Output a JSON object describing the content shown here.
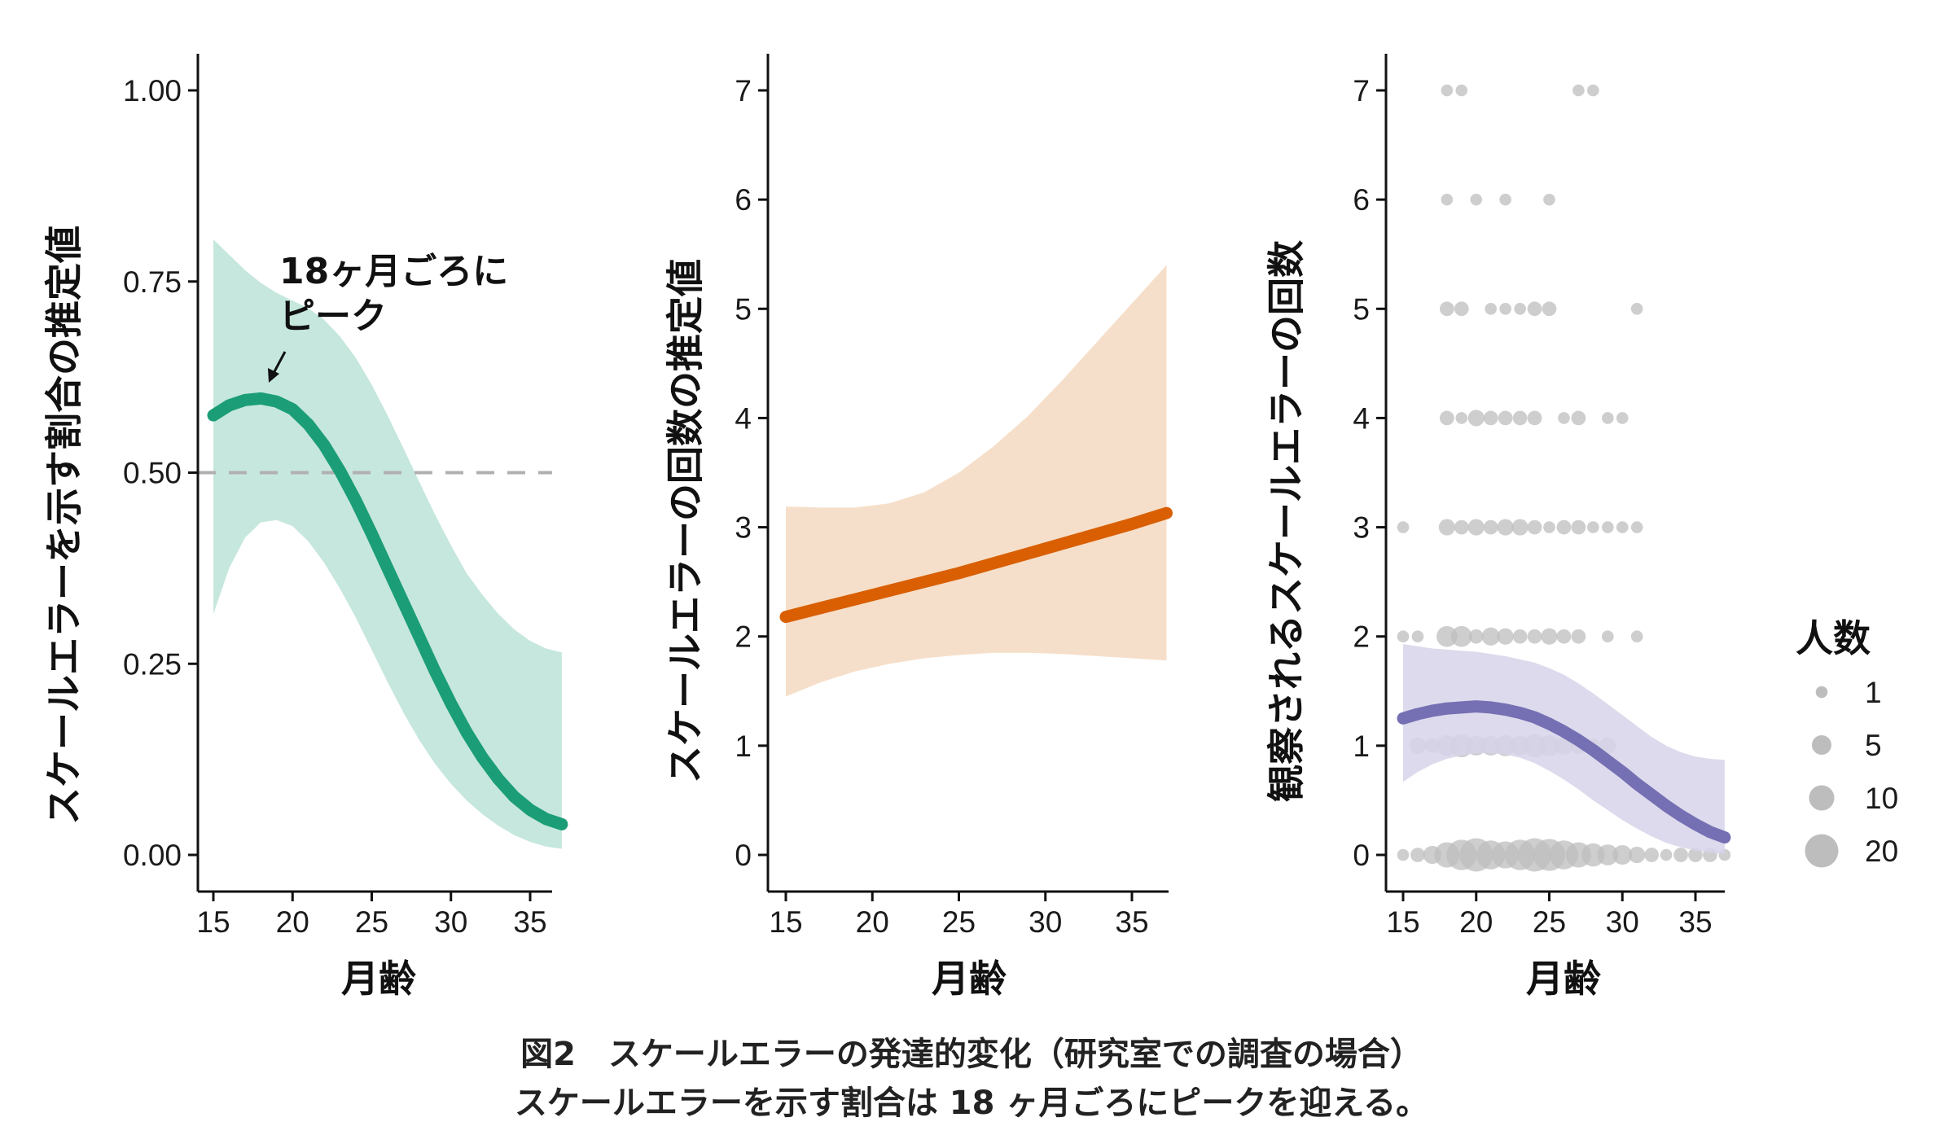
{
  "caption": {
    "line1": "図2　スケールエラーの発達的変化（研究室での調査の場合）",
    "line2": "スケールエラーを示す割合は 18 ヶ月ごろにピークを迎える。"
  },
  "chart_data": [
    {
      "type": "line",
      "xlabel": "月齢",
      "ylabel": "スケールエラーを示す割合の推定値",
      "xlim": [
        15,
        37
      ],
      "ylim": [
        0,
        1
      ],
      "xticks": [
        15,
        20,
        25,
        30,
        35
      ],
      "yticks": [
        "0.00",
        "0.25",
        "0.50",
        "0.75",
        "1.00"
      ],
      "reference_line": {
        "y": 0.5,
        "style": "dashed"
      },
      "color": "#1b9e77",
      "band_color": "#1b9e77",
      "series": [
        {
          "x": [
            15,
            16,
            17,
            18,
            19,
            20,
            21,
            22,
            23,
            24,
            25,
            26,
            27,
            28,
            29,
            30,
            31,
            32,
            33,
            34,
            35,
            36,
            37
          ],
          "y": [
            0.575,
            0.588,
            0.595,
            0.597,
            0.593,
            0.583,
            0.563,
            0.536,
            0.502,
            0.463,
            0.42,
            0.375,
            0.33,
            0.285,
            0.24,
            0.198,
            0.16,
            0.127,
            0.099,
            0.076,
            0.059,
            0.047,
            0.04
          ],
          "lower": [
            0.315,
            0.375,
            0.415,
            0.435,
            0.438,
            0.43,
            0.41,
            0.382,
            0.348,
            0.31,
            0.268,
            0.226,
            0.186,
            0.15,
            0.119,
            0.093,
            0.071,
            0.053,
            0.038,
            0.026,
            0.017,
            0.011,
            0.008
          ],
          "upper": [
            0.805,
            0.785,
            0.765,
            0.748,
            0.735,
            0.725,
            0.715,
            0.7,
            0.678,
            0.65,
            0.615,
            0.575,
            0.532,
            0.488,
            0.445,
            0.405,
            0.368,
            0.34,
            0.315,
            0.295,
            0.28,
            0.27,
            0.265
          ]
        }
      ],
      "annotation": {
        "lines": [
          "18ヶ月ごろに",
          "ピーク"
        ],
        "points_to": [
          18,
          0.597
        ]
      }
    },
    {
      "type": "line",
      "xlabel": "月齢",
      "ylabel": "スケールエラーの回数の推定値",
      "xlim": [
        15,
        37
      ],
      "ylim": [
        0,
        7
      ],
      "xticks": [
        15,
        20,
        25,
        30,
        35
      ],
      "yticks": [
        "0",
        "1",
        "2",
        "3",
        "4",
        "5",
        "6",
        "7"
      ],
      "color": "#d95f02",
      "band_color": "#f5d9c1",
      "series": [
        {
          "x": [
            15,
            17,
            19,
            21,
            23,
            25,
            27,
            29,
            31,
            33,
            35,
            37
          ],
          "y": [
            2.18,
            2.26,
            2.34,
            2.42,
            2.5,
            2.58,
            2.67,
            2.76,
            2.85,
            2.94,
            3.03,
            3.13
          ],
          "lower": [
            1.45,
            1.58,
            1.68,
            1.75,
            1.8,
            1.83,
            1.85,
            1.85,
            1.84,
            1.82,
            1.8,
            1.78
          ],
          "upper": [
            3.19,
            3.18,
            3.18,
            3.22,
            3.32,
            3.5,
            3.74,
            4.02,
            4.35,
            4.7,
            5.05,
            5.4
          ]
        }
      ]
    },
    {
      "type": "scatter",
      "xlabel": "月齢",
      "ylabel": "観察されるスケールエラーの回数",
      "xlim": [
        15,
        37
      ],
      "ylim": [
        0,
        7
      ],
      "xticks": [
        15,
        20,
        25,
        30,
        35
      ],
      "yticks": [
        "0",
        "1",
        "2",
        "3",
        "4",
        "5",
        "6",
        "7"
      ],
      "point_color": "#bdbdbd",
      "color": "#7570b3",
      "band_color": "#d6d3e9",
      "legend": {
        "title": "人数",
        "sizes": [
          1,
          5,
          10,
          20
        ],
        "labels": [
          "1",
          "5",
          "10",
          "20"
        ],
        "position": "right"
      },
      "points": [
        {
          "x": 15,
          "y": 0,
          "n": 1
        },
        {
          "x": 16,
          "y": 0,
          "n": 2
        },
        {
          "x": 17,
          "y": 0,
          "n": 4
        },
        {
          "x": 18,
          "y": 0,
          "n": 10
        },
        {
          "x": 19,
          "y": 0,
          "n": 16
        },
        {
          "x": 20,
          "y": 0,
          "n": 20
        },
        {
          "x": 21,
          "y": 0,
          "n": 14
        },
        {
          "x": 22,
          "y": 0,
          "n": 12
        },
        {
          "x": 23,
          "y": 0,
          "n": 16
        },
        {
          "x": 24,
          "y": 0,
          "n": 20
        },
        {
          "x": 25,
          "y": 0,
          "n": 18
        },
        {
          "x": 26,
          "y": 0,
          "n": 14
        },
        {
          "x": 27,
          "y": 0,
          "n": 10
        },
        {
          "x": 28,
          "y": 0,
          "n": 8
        },
        {
          "x": 29,
          "y": 0,
          "n": 6
        },
        {
          "x": 30,
          "y": 0,
          "n": 5
        },
        {
          "x": 31,
          "y": 0,
          "n": 3
        },
        {
          "x": 32,
          "y": 0,
          "n": 2
        },
        {
          "x": 33,
          "y": 0,
          "n": 1
        },
        {
          "x": 34,
          "y": 0,
          "n": 2
        },
        {
          "x": 35,
          "y": 0,
          "n": 2
        },
        {
          "x": 36,
          "y": 0,
          "n": 2
        },
        {
          "x": 37,
          "y": 0,
          "n": 1
        },
        {
          "x": 16,
          "y": 1,
          "n": 3
        },
        {
          "x": 17,
          "y": 1,
          "n": 2
        },
        {
          "x": 18,
          "y": 1,
          "n": 6
        },
        {
          "x": 19,
          "y": 1,
          "n": 8
        },
        {
          "x": 20,
          "y": 1,
          "n": 5
        },
        {
          "x": 21,
          "y": 1,
          "n": 5
        },
        {
          "x": 22,
          "y": 1,
          "n": 6
        },
        {
          "x": 23,
          "y": 1,
          "n": 5
        },
        {
          "x": 24,
          "y": 1,
          "n": 8
        },
        {
          "x": 25,
          "y": 1,
          "n": 6
        },
        {
          "x": 26,
          "y": 1,
          "n": 4
        },
        {
          "x": 27,
          "y": 1,
          "n": 3
        },
        {
          "x": 28,
          "y": 1,
          "n": 2
        },
        {
          "x": 29,
          "y": 1,
          "n": 3
        },
        {
          "x": 15,
          "y": 2,
          "n": 1
        },
        {
          "x": 16,
          "y": 2,
          "n": 1
        },
        {
          "x": 18,
          "y": 2,
          "n": 6
        },
        {
          "x": 19,
          "y": 2,
          "n": 6
        },
        {
          "x": 20,
          "y": 2,
          "n": 2
        },
        {
          "x": 21,
          "y": 2,
          "n": 4
        },
        {
          "x": 22,
          "y": 2,
          "n": 3
        },
        {
          "x": 23,
          "y": 2,
          "n": 2
        },
        {
          "x": 24,
          "y": 2,
          "n": 2
        },
        {
          "x": 25,
          "y": 2,
          "n": 3
        },
        {
          "x": 26,
          "y": 2,
          "n": 2
        },
        {
          "x": 27,
          "y": 2,
          "n": 2
        },
        {
          "x": 29,
          "y": 2,
          "n": 1
        },
        {
          "x": 31,
          "y": 2,
          "n": 1
        },
        {
          "x": 15,
          "y": 3,
          "n": 1
        },
        {
          "x": 18,
          "y": 3,
          "n": 3
        },
        {
          "x": 19,
          "y": 3,
          "n": 2
        },
        {
          "x": 20,
          "y": 3,
          "n": 3
        },
        {
          "x": 21,
          "y": 3,
          "n": 2
        },
        {
          "x": 22,
          "y": 3,
          "n": 3
        },
        {
          "x": 23,
          "y": 3,
          "n": 3
        },
        {
          "x": 24,
          "y": 3,
          "n": 2
        },
        {
          "x": 25,
          "y": 3,
          "n": 1
        },
        {
          "x": 26,
          "y": 3,
          "n": 2
        },
        {
          "x": 27,
          "y": 3,
          "n": 2
        },
        {
          "x": 28,
          "y": 3,
          "n": 1
        },
        {
          "x": 29,
          "y": 3,
          "n": 1
        },
        {
          "x": 30,
          "y": 3,
          "n": 1
        },
        {
          "x": 31,
          "y": 3,
          "n": 1
        },
        {
          "x": 18,
          "y": 4,
          "n": 2
        },
        {
          "x": 19,
          "y": 4,
          "n": 1
        },
        {
          "x": 20,
          "y": 4,
          "n": 3
        },
        {
          "x": 21,
          "y": 4,
          "n": 2
        },
        {
          "x": 22,
          "y": 4,
          "n": 2
        },
        {
          "x": 23,
          "y": 4,
          "n": 2
        },
        {
          "x": 24,
          "y": 4,
          "n": 2
        },
        {
          "x": 26,
          "y": 4,
          "n": 1
        },
        {
          "x": 27,
          "y": 4,
          "n": 2
        },
        {
          "x": 29,
          "y": 4,
          "n": 1
        },
        {
          "x": 30,
          "y": 4,
          "n": 1
        },
        {
          "x": 18,
          "y": 5,
          "n": 2
        },
        {
          "x": 19,
          "y": 5,
          "n": 2
        },
        {
          "x": 21,
          "y": 5,
          "n": 1
        },
        {
          "x": 22,
          "y": 5,
          "n": 1
        },
        {
          "x": 23,
          "y": 5,
          "n": 1
        },
        {
          "x": 24,
          "y": 5,
          "n": 2
        },
        {
          "x": 25,
          "y": 5,
          "n": 2
        },
        {
          "x": 31,
          "y": 5,
          "n": 1
        },
        {
          "x": 18,
          "y": 6,
          "n": 1
        },
        {
          "x": 20,
          "y": 6,
          "n": 1
        },
        {
          "x": 22,
          "y": 6,
          "n": 1
        },
        {
          "x": 25,
          "y": 6,
          "n": 1
        },
        {
          "x": 18,
          "y": 7,
          "n": 1
        },
        {
          "x": 19,
          "y": 7,
          "n": 1
        },
        {
          "x": 27,
          "y": 7,
          "n": 1
        },
        {
          "x": 28,
          "y": 7,
          "n": 1
        }
      ],
      "series": [
        {
          "x": [
            15,
            16,
            17,
            18,
            19,
            20,
            21,
            22,
            23,
            24,
            25,
            26,
            27,
            28,
            29,
            30,
            31,
            32,
            33,
            34,
            35,
            36,
            37
          ],
          "y": [
            1.25,
            1.29,
            1.32,
            1.34,
            1.35,
            1.36,
            1.35,
            1.33,
            1.3,
            1.26,
            1.2,
            1.13,
            1.05,
            0.96,
            0.86,
            0.76,
            0.65,
            0.55,
            0.45,
            0.36,
            0.28,
            0.21,
            0.16
          ],
          "lower": [
            0.67,
            0.76,
            0.83,
            0.88,
            0.91,
            0.93,
            0.93,
            0.92,
            0.89,
            0.84,
            0.77,
            0.69,
            0.6,
            0.5,
            0.41,
            0.32,
            0.24,
            0.17,
            0.11,
            0.07,
            0.04,
            0.02,
            0.01
          ],
          "upper": [
            1.93,
            1.91,
            1.89,
            1.88,
            1.87,
            1.86,
            1.84,
            1.82,
            1.79,
            1.76,
            1.71,
            1.65,
            1.57,
            1.48,
            1.38,
            1.28,
            1.18,
            1.08,
            1.0,
            0.94,
            0.9,
            0.88,
            0.87
          ]
        }
      ]
    }
  ]
}
